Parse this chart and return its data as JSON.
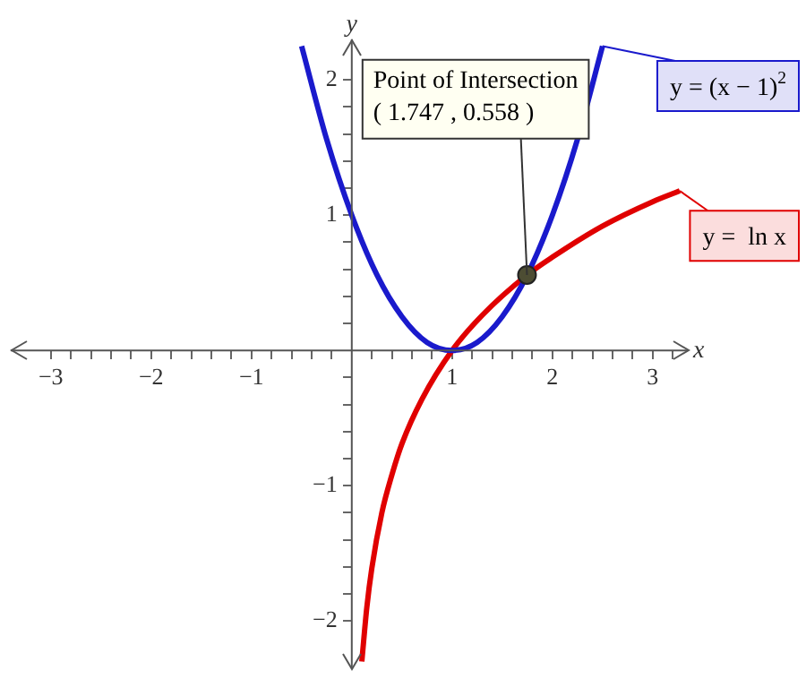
{
  "chart_data": {
    "type": "line",
    "xlabel": "x",
    "ylabel": "y",
    "xlim": [
      -3.4,
      3.35
    ],
    "ylim": [
      -2.35,
      2.3
    ],
    "xticks": [
      {
        "value": -3,
        "label": "−3"
      },
      {
        "value": -2.8,
        "label": null
      },
      {
        "value": -2.6,
        "label": null
      },
      {
        "value": -2.4,
        "label": null
      },
      {
        "value": -2.2,
        "label": null
      },
      {
        "value": -2,
        "label": "−2"
      },
      {
        "value": -1.8,
        "label": null
      },
      {
        "value": -1.6,
        "label": null
      },
      {
        "value": -1.4,
        "label": null
      },
      {
        "value": -1.2,
        "label": null
      },
      {
        "value": -1,
        "label": "−1"
      },
      {
        "value": -0.8,
        "label": null
      },
      {
        "value": -0.6,
        "label": null
      },
      {
        "value": -0.4,
        "label": null
      },
      {
        "value": -0.2,
        "label": null
      },
      {
        "value": 0.2,
        "label": null
      },
      {
        "value": 0.4,
        "label": null
      },
      {
        "value": 0.6,
        "label": null
      },
      {
        "value": 0.8,
        "label": null
      },
      1,
      {
        "value": 1.2,
        "label": null
      },
      {
        "value": 1.4,
        "label": null
      },
      {
        "value": 1.6,
        "label": null
      },
      {
        "value": 1.8,
        "label": null
      },
      2,
      {
        "value": 2.2,
        "label": null
      },
      {
        "value": 2.4,
        "label": null
      },
      {
        "value": 2.6,
        "label": null
      },
      {
        "value": 2.8,
        "label": null
      },
      3,
      {
        "value": 3.2,
        "label": null
      }
    ],
    "yticks": [
      {
        "value": -2,
        "label": "−2"
      },
      {
        "value": -1.8,
        "label": null
      },
      {
        "value": -1.6,
        "label": null
      },
      {
        "value": -1.4,
        "label": null
      },
      {
        "value": -1.2,
        "label": null
      },
      {
        "value": -1,
        "label": "−1"
      },
      {
        "value": -0.8,
        "label": null
      },
      {
        "value": -0.6,
        "label": null
      },
      {
        "value": -0.4,
        "label": null
      },
      {
        "value": -0.2,
        "label": null
      },
      {
        "value": 0.2,
        "label": null
      },
      {
        "value": 0.4,
        "label": null
      },
      {
        "value": 0.6,
        "label": null
      },
      {
        "value": 0.8,
        "label": null
      },
      1,
      {
        "value": 1.2,
        "label": null
      },
      {
        "value": 1.4,
        "label": null
      },
      {
        "value": 1.6,
        "label": null
      },
      {
        "value": 1.8,
        "label": null
      },
      2
    ],
    "grid": false,
    "legend": "right",
    "marker": "none",
    "series": [
      {
        "name": "y = (x − 1)$^{2}$",
        "color": "#1a1acc",
        "x": [
          -0.5,
          -0.25,
          0,
          0.25,
          0.5,
          0.75,
          1,
          1.25,
          1.5,
          1.75,
          2,
          2.25,
          2.5
        ],
        "values": [
          2.25,
          1.56,
          1,
          0.56,
          0.25,
          0.06,
          0,
          0.06,
          0.25,
          0.56,
          1,
          1.56,
          2.25
        ]
      },
      {
        "name": "y =  ln x",
        "color": "#e00000",
        "x": [
          0.1,
          0.15,
          0.2,
          0.3,
          0.4,
          0.5,
          0.7,
          1,
          1.3,
          1.747,
          2,
          2.5,
          3,
          3.27
        ],
        "values": [
          -2.3,
          -1.9,
          -1.61,
          -1.2,
          -0.92,
          -0.69,
          -0.36,
          0,
          0.26,
          0.558,
          0.69,
          0.92,
          1.1,
          1.18
        ]
      },
      {
        "type": "scatter",
        "marker": "circle",
        "color": "#4d4d33",
        "x": [
          1.747
        ],
        "values": [
          0.558
        ]
      }
    ],
    "annotations": [
      {
        "text": "Point of Intersection\n( 1.747 , 0.558 )",
        "x": 1.747,
        "y": 0.558
      }
    ]
  }
}
